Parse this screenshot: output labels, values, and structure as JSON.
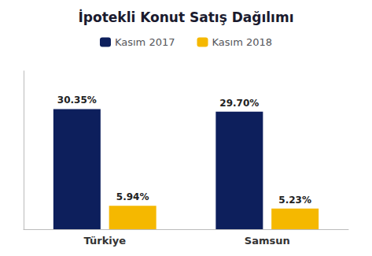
{
  "chart_data": {
    "type": "bar",
    "title": "İpotekli Konut Satış Dağılımı",
    "categories": [
      "Türkiye",
      "Samsun"
    ],
    "series": [
      {
        "name": "Kasım 2017",
        "color": "#0d1f5c",
        "values": [
          30.35,
          29.7
        ],
        "value_labels": [
          "30.35%",
          "29.70%"
        ]
      },
      {
        "name": "Kasım 2018",
        "color": "#f5b800",
        "values": [
          5.94,
          5.23
        ],
        "value_labels": [
          "5.94%",
          "5.23%"
        ]
      }
    ],
    "ylim": [
      0,
      40
    ],
    "grid": false,
    "legend": "top",
    "data_labels": true,
    "tick_labels": "x"
  }
}
